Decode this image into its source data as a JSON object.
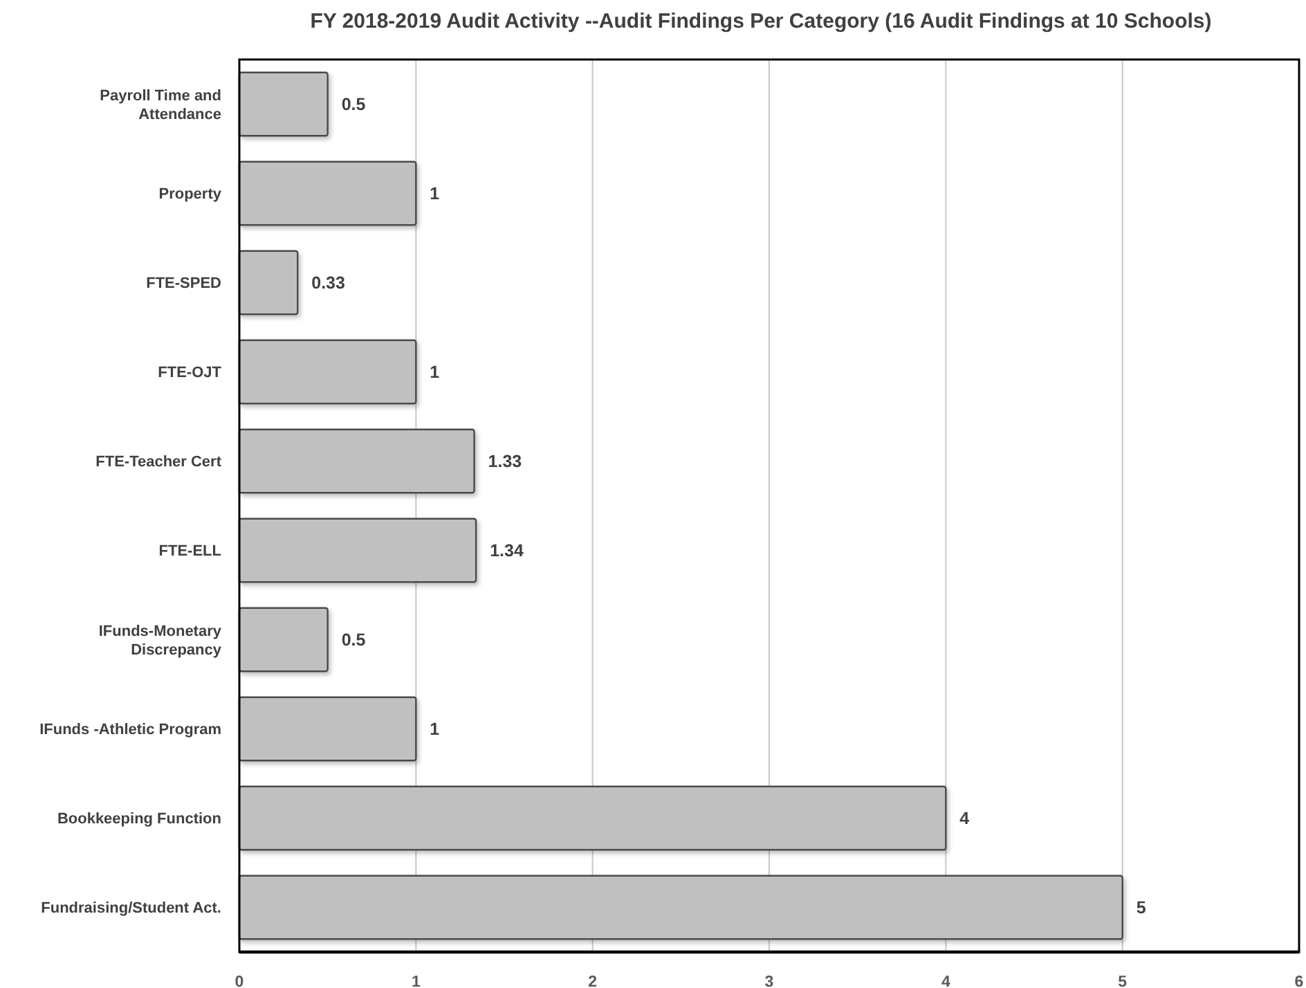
{
  "chart_data": {
    "type": "bar",
    "orientation": "horizontal",
    "title": "FY 2018-2019 Audit Activity --Audit  Findings Per Category (16 Audit Findings at 10 Schools)",
    "categories": [
      "Payroll Time and Attendance",
      "Property",
      "FTE-SPED",
      "FTE-OJT",
      "FTE-Teacher Cert",
      "FTE-ELL",
      "IFunds-Monetary Discrepancy",
      "IFunds -Athletic Program",
      "Bookkeeping Function",
      "Fundraising/Student Act."
    ],
    "values": [
      0.5,
      1,
      0.33,
      1,
      1.33,
      1.34,
      0.5,
      1,
      4,
      5
    ],
    "color": "#c0c0c0",
    "xlim": [
      0,
      6
    ],
    "xticks": [
      0,
      1,
      2,
      3,
      4,
      5,
      6
    ],
    "grid": "x",
    "data_labels": true
  }
}
